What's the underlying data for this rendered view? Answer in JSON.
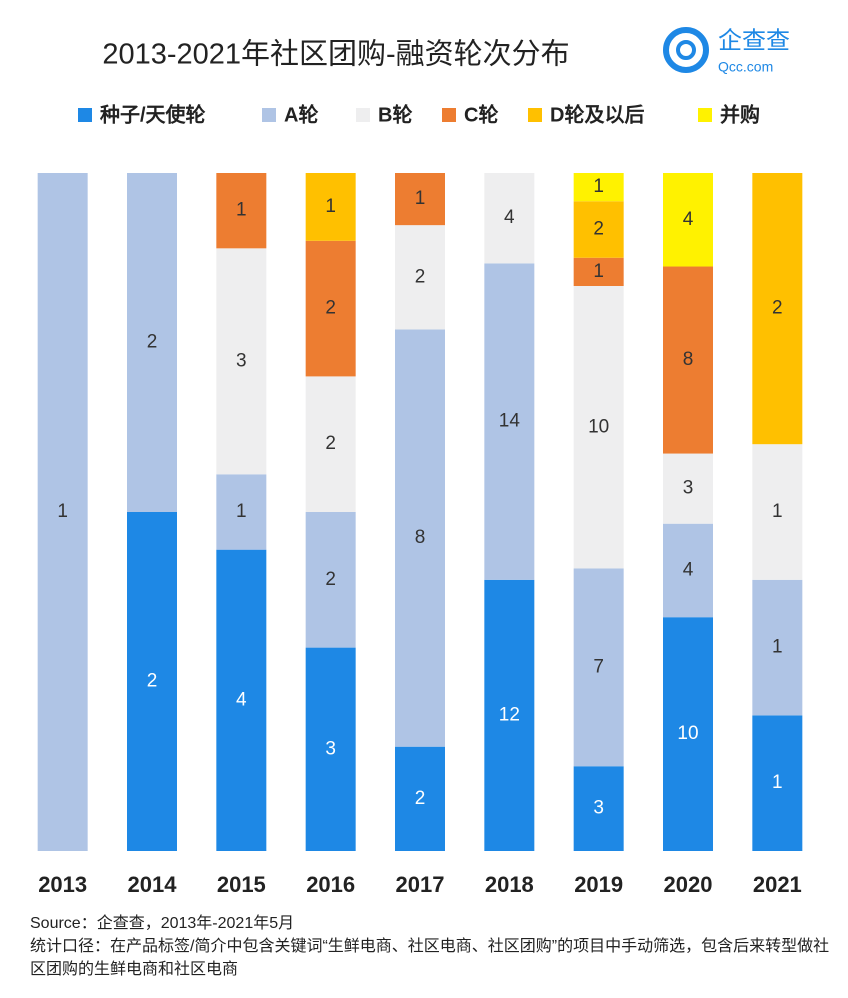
{
  "chart_data": {
    "type": "bar",
    "stacked": "percent",
    "title": "2013-2021年社区团购-融资轮次分布",
    "logo": {
      "name": "企查查",
      "url": "Qcc.com"
    },
    "categories": [
      "2013",
      "2014",
      "2015",
      "2016",
      "2017",
      "2018",
      "2019",
      "2020",
      "2021"
    ],
    "series": [
      {
        "name": "种子/天使轮",
        "color": "#1e88e5",
        "values": [
          null,
          2,
          4,
          3,
          2,
          12,
          3,
          10,
          1
        ]
      },
      {
        "name": "A轮",
        "color": "#afc4e5",
        "values": [
          1,
          2,
          1,
          2,
          8,
          14,
          7,
          4,
          1
        ]
      },
      {
        "name": "B轮",
        "color": "#eeeeef",
        "values": [
          null,
          null,
          3,
          2,
          2,
          4,
          10,
          3,
          1
        ]
      },
      {
        "name": "C轮",
        "color": "#ed7d31",
        "values": [
          null,
          null,
          1,
          2,
          1,
          null,
          1,
          8,
          null
        ]
      },
      {
        "name": "D轮及以后",
        "color": "#ffc000",
        "values": [
          null,
          null,
          null,
          1,
          null,
          null,
          2,
          null,
          2
        ]
      },
      {
        "name": "并购",
        "color": "#fff200",
        "values": [
          null,
          null,
          null,
          null,
          null,
          null,
          1,
          4,
          null
        ]
      }
    ],
    "notes": [
      "Source：企查查，2013年-2021年5月",
      "统计口径：在产品标签/简介中包含关键词“生鲜电商、社区电商、社区团购”的项目中手动筛选，包含后来转型做社区团购的生鲜电商和社区电商"
    ]
  }
}
